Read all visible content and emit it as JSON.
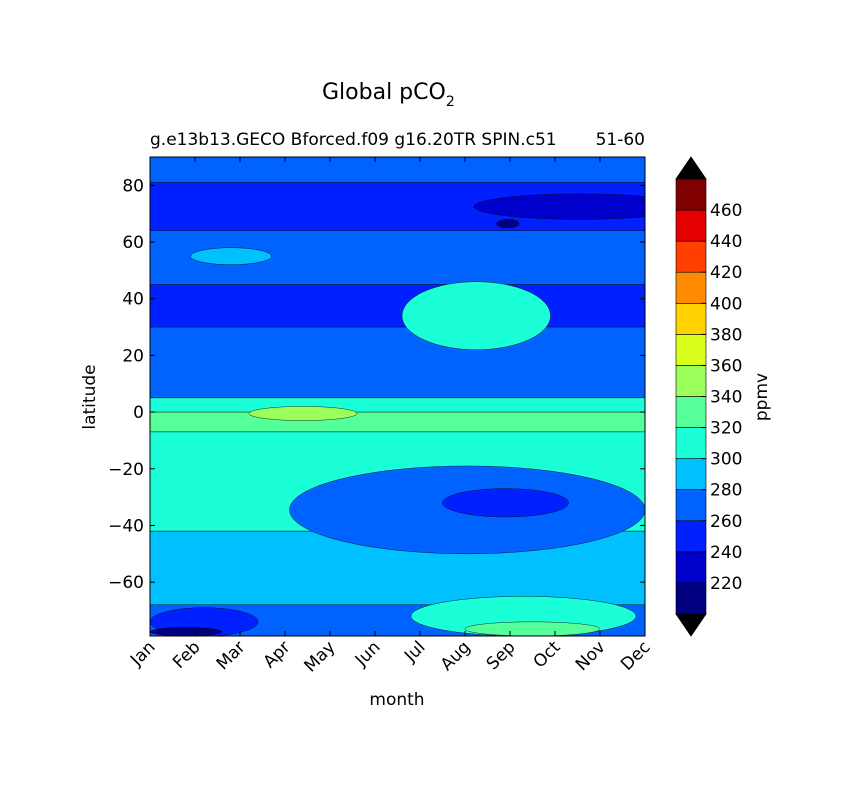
{
  "chart_data": {
    "type": "heatmap",
    "title": "Global pCO",
    "title_subscript": "2",
    "subtitle_left": "g.e13b13.GECO Bforced.f09 g16.20TR SPIN.c51",
    "subtitle_right": "51-60",
    "xlabel": "month",
    "ylabel": "latitude",
    "x_ticks": [
      "Jan",
      "Feb",
      "Mar",
      "Apr",
      "May",
      "Jun",
      "Jul",
      "Aug",
      "Sep",
      "Oct",
      "Nov",
      "Dec"
    ],
    "y_ticks": [
      80,
      60,
      40,
      20,
      0,
      -20,
      -40,
      -60
    ],
    "y_tick_labels": [
      "80",
      "60",
      "40",
      "20",
      "0",
      "−20",
      "−40",
      "−60"
    ],
    "ylim": [
      -79,
      90
    ],
    "colorbar": {
      "label": "ppmv",
      "levels": [
        220,
        240,
        260,
        280,
        300,
        320,
        340,
        360,
        380,
        400,
        420,
        440,
        460
      ],
      "tick_labels": [
        "220",
        "240",
        "260",
        "280",
        "300",
        "320",
        "340",
        "360",
        "380",
        "400",
        "420",
        "440",
        "460"
      ],
      "colors": [
        "#000080",
        "#0000cc",
        "#0020ff",
        "#0062ff",
        "#00c0ff",
        "#1affd8",
        "#55ff9a",
        "#9bff5b",
        "#d9ff1d",
        "#ffd200",
        "#ff8c00",
        "#ff4000",
        "#e40000",
        "#800000"
      ],
      "extend_low_color": "#000000",
      "extend_high_color": "#000000"
    },
    "bands": [
      {
        "lat_top": 90,
        "lat_bottom": 81,
        "band": 3
      },
      {
        "lat_top": 81,
        "lat_bottom": 64,
        "band": 2
      },
      {
        "lat_top": 64,
        "lat_bottom": 45,
        "band": 3
      },
      {
        "lat_top": 45,
        "lat_bottom": 30,
        "band": 2
      },
      {
        "lat_top": 30,
        "lat_bottom": 5,
        "band": 3
      },
      {
        "lat_top": 5,
        "lat_bottom": 0,
        "band": 5
      },
      {
        "lat_top": 0,
        "lat_bottom": -7,
        "band": 6
      },
      {
        "lat_top": -7,
        "lat_bottom": -42,
        "band": 5
      },
      {
        "lat_top": -42,
        "lat_bottom": -68,
        "band": 4
      },
      {
        "lat_top": -68,
        "lat_bottom": -79,
        "band": 3
      }
    ],
    "features": [
      {
        "band": 1,
        "month_start": 7.2,
        "month_end": 11.9,
        "lat_top": 77,
        "lat_bottom": 68
      },
      {
        "band": 0,
        "month_start": 7.7,
        "month_end": 8.2,
        "lat_top": 68,
        "lat_bottom": 65
      },
      {
        "band": 4,
        "month_start": 0.9,
        "month_end": 2.7,
        "lat_top": 58,
        "lat_bottom": 52
      },
      {
        "band": 5,
        "month_start": 5.6,
        "month_end": 8.9,
        "lat_top": 46,
        "lat_bottom": 22
      },
      {
        "band": 7,
        "month_start": 2.2,
        "month_end": 4.6,
        "lat_top": 2,
        "lat_bottom": -3
      },
      {
        "band": 3,
        "month_start": 3.1,
        "month_end": 11.0,
        "lat_top": -19,
        "lat_bottom": -50
      },
      {
        "band": 2,
        "month_start": 6.5,
        "month_end": 9.3,
        "lat_top": -27,
        "lat_bottom": -37
      },
      {
        "band": 5,
        "month_start": 5.8,
        "month_end": 10.8,
        "lat_top": -65,
        "lat_bottom": -79
      },
      {
        "band": 6,
        "month_start": 7.0,
        "month_end": 10.0,
        "lat_top": -74,
        "lat_bottom": -79
      },
      {
        "band": 2,
        "month_start": 0.0,
        "month_end": 2.4,
        "lat_top": -69,
        "lat_bottom": -79
      },
      {
        "band": 0,
        "month_start": 0.0,
        "month_end": 1.6,
        "lat_top": -76,
        "lat_bottom": -79
      }
    ]
  }
}
